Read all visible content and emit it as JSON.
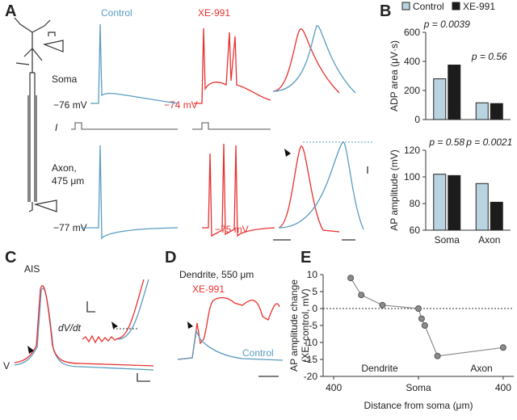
{
  "panel_labels": [
    "A",
    "B",
    "C",
    "D",
    "E"
  ],
  "panel_a": {
    "control": "Control",
    "xe": "XE-991",
    "soma": "Soma",
    "axon": [
      "Axon,",
      "475 μm"
    ],
    "current": "I",
    "potentials": [
      "−76 mV",
      "−74 mV",
      "−77 mV",
      "−75 mV"
    ]
  },
  "panel_c": {
    "title": "AIS",
    "derivative": "dV/dt",
    "voltage": "V"
  },
  "panel_d": {
    "title": "Dendrite, 550 μm",
    "xe": "XE-991",
    "control": "Control"
  },
  "chart_data": [
    {
      "type": "bar",
      "y_label": "ADP area (μV·s)",
      "categories": [
        null,
        null
      ],
      "series": [
        {
          "name": "Control",
          "color": "#b9d4e0",
          "values": [
            280,
            115
          ]
        },
        {
          "name": "XE-991",
          "color": "#1c1c1c",
          "values": [
            375,
            110
          ]
        }
      ],
      "p_values": [
        "p = 0.0039",
        "p = 0.56"
      ],
      "ylim": [
        0,
        600
      ],
      "yticks": [
        0,
        200,
        400,
        600
      ],
      "legend": "top"
    },
    {
      "type": "bar",
      "y_label": "AP amplitude (mV)",
      "categories": [
        "Soma",
        "Axon"
      ],
      "series": [
        {
          "color": "#b9d4e0",
          "values": [
            102,
            95
          ]
        },
        {
          "color": "#1c1c1c",
          "values": [
            101,
            81
          ]
        }
      ],
      "p_values": [
        "p = 0.58",
        "p = 0.0021"
      ],
      "ylim": [
        60,
        120
      ],
      "yticks": [
        60,
        80,
        100,
        120
      ]
    },
    {
      "type": "line",
      "x_label": "Distance from soma (μm)",
      "y_label": [
        "AP amplitude change",
        "(XE–control, mV)"
      ],
      "x": [
        -320,
        -270,
        -170,
        0,
        15,
        30,
        90,
        400
      ],
      "values": [
        9,
        4,
        1,
        0,
        -3,
        -5,
        -14,
        -11.5
      ],
      "color": "#8c8c8c",
      "region_labels": [
        "Dendrite",
        "Axon"
      ],
      "xlim": [
        -450,
        450
      ],
      "xticks": [
        {
          "value": -400,
          "label": "400"
        },
        {
          "value": 0,
          "label": "Soma"
        },
        {
          "value": 400,
          "label": "400"
        }
      ],
      "ylim": [
        -20,
        10
      ],
      "yticks": [
        -20,
        -15,
        -10,
        -5,
        0,
        5,
        10
      ],
      "zero_line": true
    }
  ]
}
